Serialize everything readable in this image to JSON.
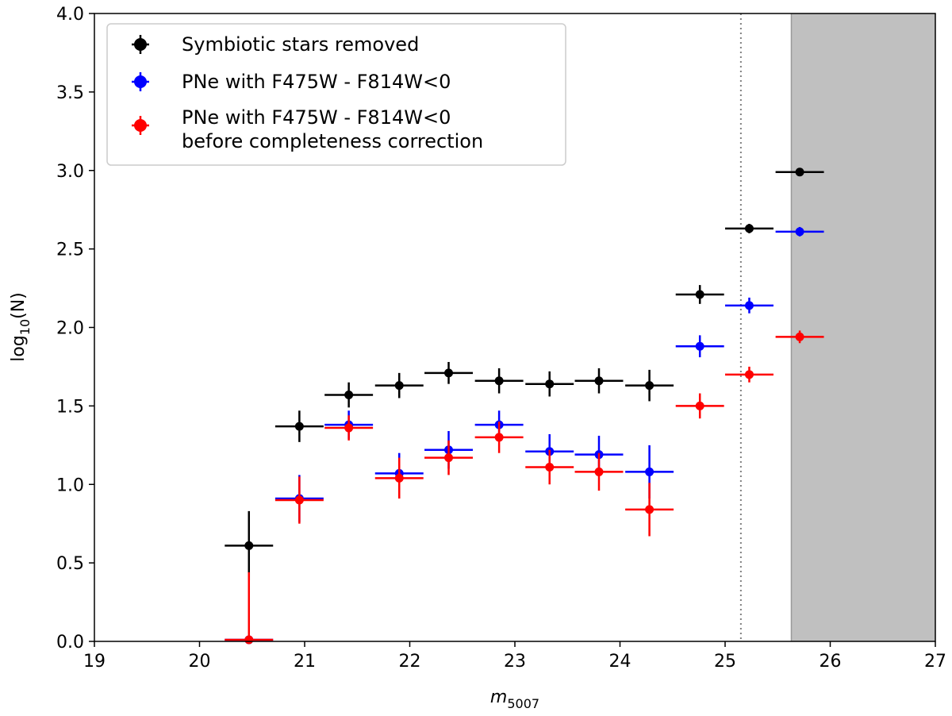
{
  "chart_data": {
    "type": "scatter",
    "title": "",
    "xlabel": {
      "base": "m",
      "sub": "5007"
    },
    "ylabel": {
      "base": "log",
      "sub": "10",
      "rest": "(N)"
    },
    "xlim": [
      19,
      27
    ],
    "ylim": [
      0.0,
      4.0
    ],
    "x_ticks": [
      19,
      20,
      21,
      22,
      23,
      24,
      25,
      26,
      27
    ],
    "y_ticks": [
      0.0,
      0.5,
      1.0,
      1.5,
      2.0,
      2.5,
      3.0,
      3.5,
      4.0
    ],
    "x_tick_labels": [
      "19",
      "20",
      "21",
      "22",
      "23",
      "24",
      "25",
      "26",
      "27"
    ],
    "y_tick_labels": [
      "0.0",
      "0.5",
      "1.0",
      "1.5",
      "2.0",
      "2.5",
      "3.0",
      "3.5",
      "4.0"
    ],
    "grid": false,
    "legend_position": "top-left",
    "vline": {
      "x": 25.15,
      "style": "dotted",
      "color": "#808080"
    },
    "shaded_region": {
      "x_start": 25.63,
      "x_end": 27,
      "color": "#c0c0c0"
    },
    "x_half_width": 0.23,
    "series": [
      {
        "name": "Symbiotic stars removed",
        "color": "#000000",
        "points": [
          {
            "x": 20.47,
            "y": 0.61,
            "yerr": 0.22
          },
          {
            "x": 20.95,
            "y": 1.37,
            "yerr": 0.1
          },
          {
            "x": 21.42,
            "y": 1.57,
            "yerr": 0.08
          },
          {
            "x": 21.9,
            "y": 1.63,
            "yerr": 0.08
          },
          {
            "x": 22.37,
            "y": 1.71,
            "yerr": 0.07
          },
          {
            "x": 22.85,
            "y": 1.66,
            "yerr": 0.08
          },
          {
            "x": 23.33,
            "y": 1.64,
            "yerr": 0.08
          },
          {
            "x": 23.8,
            "y": 1.66,
            "yerr": 0.08
          },
          {
            "x": 24.28,
            "y": 1.63,
            "yerr": 0.1
          },
          {
            "x": 24.76,
            "y": 2.21,
            "yerr": 0.06
          },
          {
            "x": 25.23,
            "y": 2.63,
            "yerr": 0.03
          },
          {
            "x": 25.71,
            "y": 2.99,
            "yerr": 0.02
          }
        ]
      },
      {
        "name": "PNe with F475W - F814W<0",
        "color": "#0000ff",
        "points": [
          {
            "x": 20.47,
            "y": 0.01,
            "yerr": 0.01
          },
          {
            "x": 20.95,
            "y": 0.91,
            "yerr": 0.15
          },
          {
            "x": 21.42,
            "y": 1.38,
            "yerr": 0.09
          },
          {
            "x": 21.9,
            "y": 1.07,
            "yerr": 0.13
          },
          {
            "x": 22.37,
            "y": 1.22,
            "yerr": 0.12
          },
          {
            "x": 22.85,
            "y": 1.38,
            "yerr": 0.09
          },
          {
            "x": 23.33,
            "y": 1.21,
            "yerr": 0.11
          },
          {
            "x": 23.8,
            "y": 1.19,
            "yerr": 0.12
          },
          {
            "x": 24.28,
            "y": 1.08,
            "yerr": 0.17
          },
          {
            "x": 24.76,
            "y": 1.88,
            "yerr": 0.07
          },
          {
            "x": 25.23,
            "y": 2.14,
            "yerr": 0.05
          },
          {
            "x": 25.71,
            "y": 2.61,
            "yerr": 0.03
          }
        ]
      },
      {
        "name": "PNe with F475W - F814W<0\nbefore completeness correction",
        "color": "#ff0000",
        "points": [
          {
            "x": 20.47,
            "y": 0.01,
            "yerr": 0.43
          },
          {
            "x": 20.95,
            "y": 0.9,
            "yerr": 0.15
          },
          {
            "x": 21.42,
            "y": 1.36,
            "yerr": 0.08
          },
          {
            "x": 21.9,
            "y": 1.04,
            "yerr": 0.13
          },
          {
            "x": 22.37,
            "y": 1.17,
            "yerr": 0.11
          },
          {
            "x": 22.85,
            "y": 1.3,
            "yerr": 0.1
          },
          {
            "x": 23.33,
            "y": 1.11,
            "yerr": 0.11
          },
          {
            "x": 23.8,
            "y": 1.08,
            "yerr": 0.12
          },
          {
            "x": 24.28,
            "y": 0.84,
            "yerr": 0.17
          },
          {
            "x": 24.76,
            "y": 1.5,
            "yerr": 0.08
          },
          {
            "x": 25.23,
            "y": 1.7,
            "yerr": 0.05
          },
          {
            "x": 25.71,
            "y": 1.94,
            "yerr": 0.04
          }
        ]
      }
    ]
  }
}
